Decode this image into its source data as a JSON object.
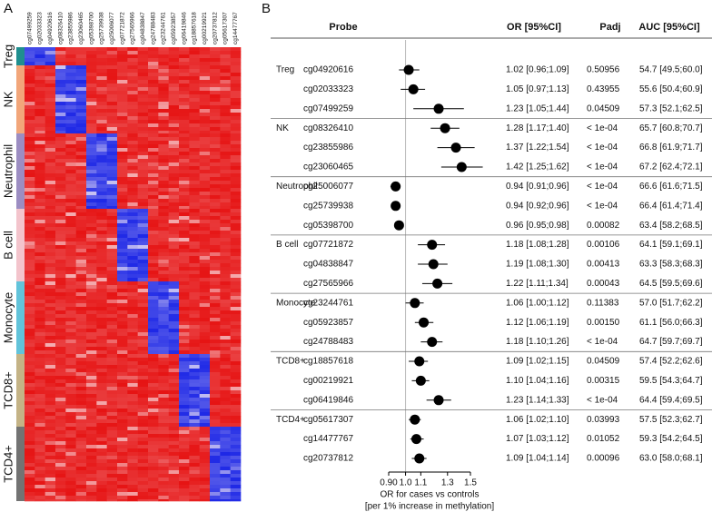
{
  "panel_a": {
    "label": "A",
    "columns": [
      "cg07499259",
      "cg02033323",
      "cg04920616",
      "cg08326410",
      "cg23855986",
      "cg23060465",
      "cg05398700",
      "cg25739938",
      "cg25006077",
      "cg07721872",
      "cg27565966",
      "cg04838847",
      "cg24788483",
      "cg23244761",
      "cg05923857",
      "cg06419846",
      "cg18857618",
      "cg00219921",
      "cg20737812",
      "cg05617307",
      "cg14477767"
    ],
    "groups": [
      {
        "name": "Treg",
        "color": "#1f8f8f"
      },
      {
        "name": "NK",
        "color": "#f2a67a"
      },
      {
        "name": "Neutrophil",
        "color": "#9c8dc2"
      },
      {
        "name": "B cell",
        "color": "#f3c4cc"
      },
      {
        "name": "Monocyte",
        "color": "#62c3da"
      },
      {
        "name": "TCD8+",
        "color": "#c4b386"
      },
      {
        "name": "TCD4+",
        "color": "#737373"
      }
    ]
  },
  "panel_b": {
    "label": "B",
    "headers": {
      "probe": "Probe",
      "or": "OR [95%CI]",
      "padj": "Padj",
      "auc": "AUC [95%CI]"
    },
    "xaxis": {
      "label_lines": [
        "OR for cases vs controls",
        "[per 1% increase in methylation]"
      ],
      "log": true,
      "xlim": [
        0.9,
        1.5
      ],
      "reference": 1,
      "xticks": [
        {
          "value": 0.9,
          "label": "0.90"
        },
        {
          "value": 1,
          "label": "1.0"
        },
        1.1,
        1.3,
        1.5
      ]
    },
    "groups": [
      {
        "name": "Treg",
        "rows": [
          {
            "probe": "cg04920616",
            "or": 1.02,
            "lo": 0.96,
            "hi": 1.09,
            "or_label": "1.02 [0.96;1.09]",
            "padj": "0.50956",
            "auc": "54.7 [49.5;60.0]"
          },
          {
            "probe": "cg02033323",
            "or": 1.05,
            "lo": 0.97,
            "hi": 1.13,
            "or_label": "1.05 [0.97;1.13]",
            "padj": "0.43955",
            "auc": "55.6 [50.4;60.9]"
          },
          {
            "probe": "cg07499259",
            "or": 1.23,
            "lo": 1.05,
            "hi": 1.44,
            "or_label": "1.23 [1.05;1.44]",
            "padj": "0.04509",
            "auc": "57.3 [52.1;62.5]"
          }
        ]
      },
      {
        "name": "NK",
        "rows": [
          {
            "probe": "cg08326410",
            "or": 1.28,
            "lo": 1.17,
            "hi": 1.4,
            "or_label": "1.28 [1.17;1.40]",
            "padj": "< 1e-04",
            "auc": "65.7 [60.8;70.7]"
          },
          {
            "probe": "cg23855986",
            "or": 1.37,
            "lo": 1.22,
            "hi": 1.54,
            "or_label": "1.37 [1.22;1.54]",
            "padj": "< 1e-04",
            "auc": "66.8 [61.9;71.7]"
          },
          {
            "probe": "cg23060465",
            "or": 1.42,
            "lo": 1.25,
            "hi": 1.62,
            "or_label": "1.42 [1.25;1.62]",
            "padj": "< 1e-04",
            "auc": "67.2 [62.4;72.1]"
          }
        ]
      },
      {
        "name": "Neutrophil",
        "rows": [
          {
            "probe": "cg25006077",
            "or": 0.94,
            "lo": 0.91,
            "hi": 0.96,
            "or_label": "0.94 [0.91;0.96]",
            "padj": "< 1e-04",
            "auc": "66.6 [61.6;71.5]"
          },
          {
            "probe": "cg25739938",
            "or": 0.94,
            "lo": 0.92,
            "hi": 0.96,
            "or_label": "0.94 [0.92;0.96]",
            "padj": "< 1e-04",
            "auc": "66.4 [61.4;71.4]"
          },
          {
            "probe": "cg05398700",
            "or": 0.96,
            "lo": 0.95,
            "hi": 0.98,
            "or_label": "0.96 [0.95;0.98]",
            "padj": "0.00082",
            "auc": "63.4 [58.2;68.5]"
          }
        ]
      },
      {
        "name": "B cell",
        "rows": [
          {
            "probe": "cg07721872",
            "or": 1.18,
            "lo": 1.08,
            "hi": 1.28,
            "or_label": "1.18 [1.08;1.28]",
            "padj": "0.00106",
            "auc": "64.1 [59.1;69.1]"
          },
          {
            "probe": "cg04838847",
            "or": 1.19,
            "lo": 1.08,
            "hi": 1.3,
            "or_label": "1.19 [1.08;1.30]",
            "padj": "0.00413",
            "auc": "63.3 [58.3;68.3]"
          },
          {
            "probe": "cg27565966",
            "or": 1.22,
            "lo": 1.11,
            "hi": 1.34,
            "or_label": "1.22 [1.11;1.34]",
            "padj": "0.00043",
            "auc": "64.5 [59.5;69.6]"
          }
        ]
      },
      {
        "name": "Monocyte",
        "rows": [
          {
            "probe": "cg23244761",
            "or": 1.06,
            "lo": 1.0,
            "hi": 1.12,
            "or_label": "1.06 [1.00;1.12]",
            "padj": "0.11383",
            "auc": "57.0 [51.7;62.2]"
          },
          {
            "probe": "cg05923857",
            "or": 1.12,
            "lo": 1.06,
            "hi": 1.19,
            "or_label": "1.12 [1.06;1.19]",
            "padj": "0.00150",
            "auc": "61.1 [56.0;66.3]"
          },
          {
            "probe": "cg24788483",
            "or": 1.18,
            "lo": 1.1,
            "hi": 1.26,
            "or_label": "1.18 [1.10;1.26]",
            "padj": "< 1e-04",
            "auc": "64.7 [59.7;69.7]"
          }
        ]
      },
      {
        "name": "TCD8+",
        "rows": [
          {
            "probe": "cg18857618",
            "or": 1.09,
            "lo": 1.02,
            "hi": 1.15,
            "or_label": "1.09 [1.02;1.15]",
            "padj": "0.04509",
            "auc": "57.4 [52.2;62.6]"
          },
          {
            "probe": "cg00219921",
            "or": 1.1,
            "lo": 1.04,
            "hi": 1.16,
            "or_label": "1.10 [1.04;1.16]",
            "padj": "0.00315",
            "auc": "59.5 [54.3;64.7]"
          },
          {
            "probe": "cg06419846",
            "or": 1.23,
            "lo": 1.14,
            "hi": 1.33,
            "or_label": "1.23 [1.14;1.33]",
            "padj": "< 1e-04",
            "auc": "64.4 [59.4;69.5]"
          }
        ]
      },
      {
        "name": "TCD4+",
        "rows": [
          {
            "probe": "cg05617307",
            "or": 1.06,
            "lo": 1.02,
            "hi": 1.1,
            "or_label": "1.06 [1.02;1.10]",
            "padj": "0.03993",
            "auc": "57.5 [52.3;62.7]"
          },
          {
            "probe": "cg14477767",
            "or": 1.07,
            "lo": 1.03,
            "hi": 1.12,
            "or_label": "1.07 [1.03;1.12]",
            "padj": "0.01052",
            "auc": "59.3 [54.2;64.5]"
          },
          {
            "probe": "cg20737812",
            "or": 1.09,
            "lo": 1.04,
            "hi": 1.14,
            "or_label": "1.09 [1.04;1.14]",
            "padj": "0.00096",
            "auc": "63.0 [58.0;68.1]"
          }
        ]
      }
    ]
  }
}
